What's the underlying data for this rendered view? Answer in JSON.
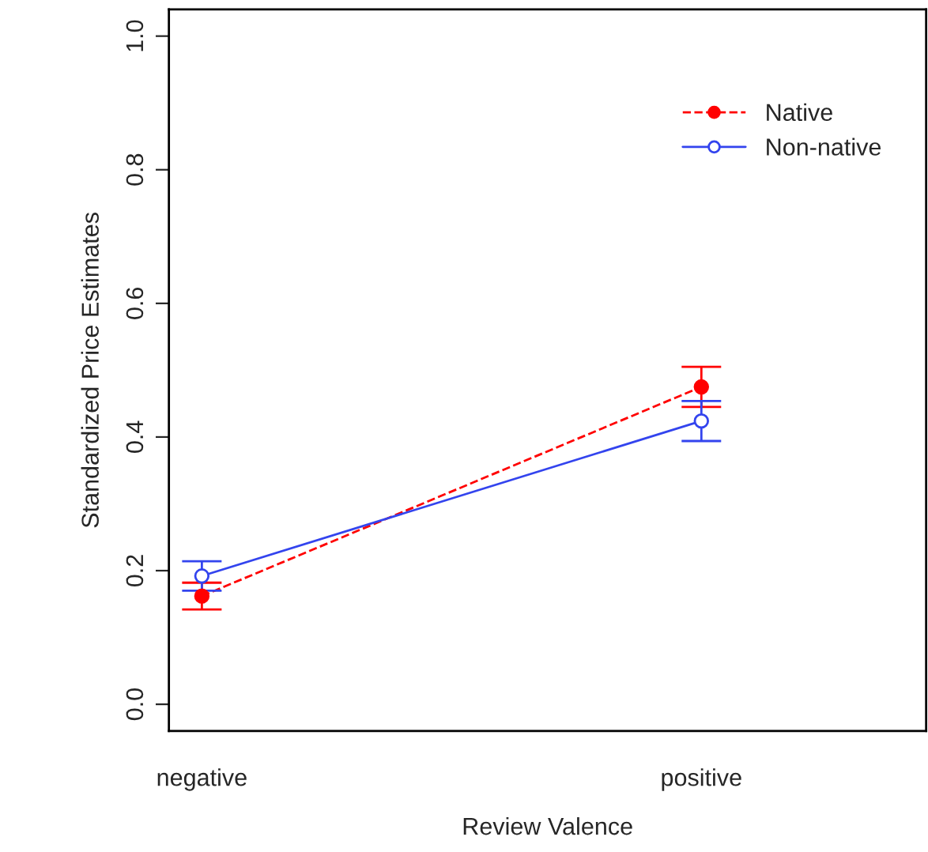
{
  "chart_data": {
    "type": "line",
    "xlabel": "Review Valence",
    "ylabel": "Standardized Price Estimates",
    "categories": [
      "negative",
      "positive"
    ],
    "series": [
      {
        "name": "Native",
        "color": "#ff0000",
        "values": [
          0.162,
          0.475
        ],
        "errors": [
          0.02,
          0.03
        ],
        "line_style": "dashed",
        "marker": "circle"
      },
      {
        "name": "Non-native",
        "color": "#3344ee",
        "values": [
          0.192,
          0.424
        ],
        "errors": [
          0.022,
          0.03
        ],
        "line_style": "solid",
        "marker": "circle"
      }
    ],
    "ylim": [
      -0.04,
      1.04
    ],
    "yticks": [
      {
        "value": 0,
        "label": "0.0"
      },
      0.2,
      0.4,
      0.6,
      0.8,
      {
        "value": 1,
        "label": "1.0"
      }
    ],
    "grid": false,
    "legend": "top right"
  }
}
